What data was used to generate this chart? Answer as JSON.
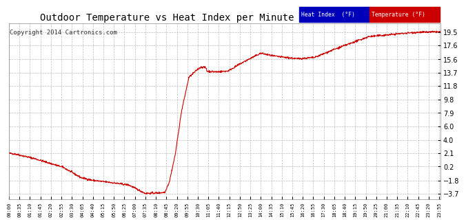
{
  "title": "Outdoor Temperature vs Heat Index per Minute (24 Hours) 20140103",
  "copyright": "Copyright 2014 Cartronics.com",
  "yticks": [
    -3.7,
    -1.8,
    0.2,
    2.1,
    4.0,
    6.0,
    7.9,
    9.8,
    11.8,
    13.7,
    15.6,
    17.6,
    19.5
  ],
  "ylim": [
    -4.5,
    20.8
  ],
  "bg_color": "#ffffff",
  "grid_color": "#bbbbbb",
  "line_color": "#cc0000",
  "title_fontsize": 10,
  "copyright_fontsize": 6.5,
  "legend_heat_bg": "#0000bb",
  "legend_temp_bg": "#cc0000",
  "legend_text_color": "#ffffff",
  "xtick_interval_minutes": 35,
  "total_minutes": 1440
}
